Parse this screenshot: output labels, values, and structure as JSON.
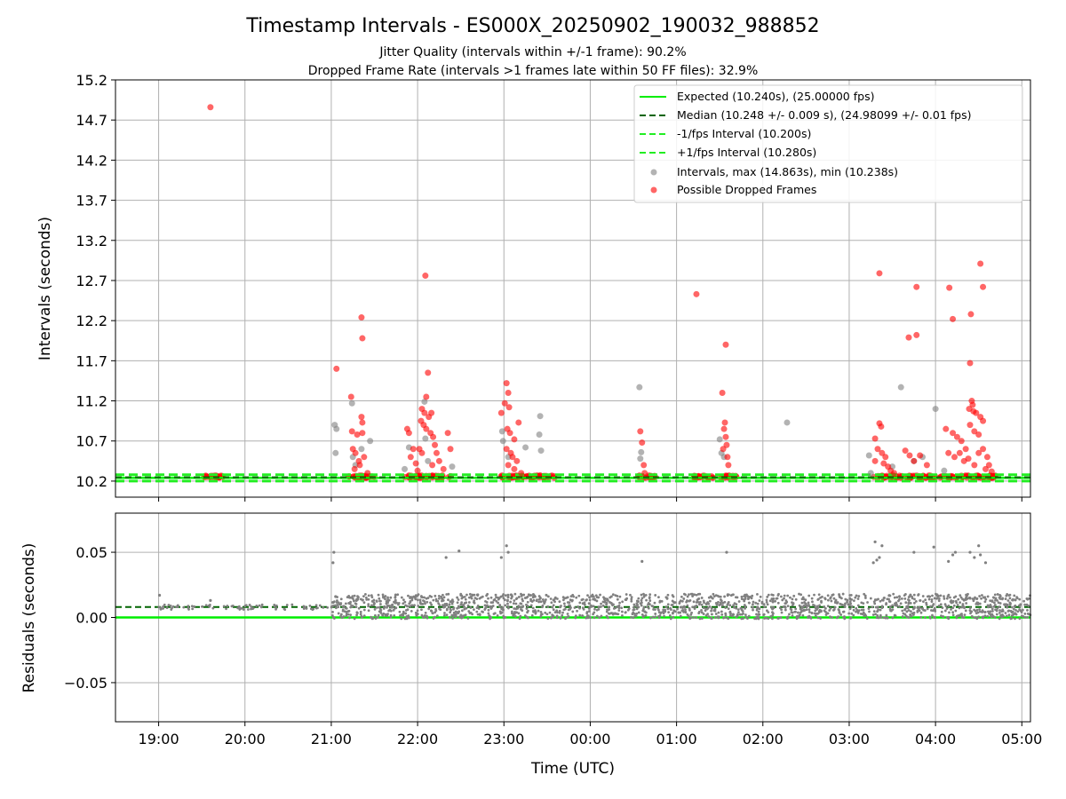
{
  "title": "Timestamp Intervals - ES000X_20250902_190032_988852",
  "subtitle_1": "Jitter Quality (intervals within +/-1 frame): 90.2%",
  "subtitle_2": "Dropped Frame Rate (intervals >1 frames late within 50 FF files): 32.9%",
  "colors": {
    "expected": "#00ee00",
    "median": "#006400",
    "interval_bounds": "#22ee22",
    "intervals": "#808080",
    "dropped": "#ff0000",
    "grid": "#b0b0b0"
  },
  "chart_data": [
    {
      "type": "scatter",
      "id": "top",
      "ylabel": "Intervals (seconds)",
      "ylim": [
        10.0,
        15.2
      ],
      "yticks": [
        "10.2",
        "10.7",
        "11.2",
        "11.7",
        "12.2",
        "12.7",
        "13.2",
        "13.7",
        "14.2",
        "14.7",
        "15.2"
      ],
      "x_range_hours": [
        18.5,
        29.1
      ],
      "grid": true,
      "legend_position": "top-right",
      "legend": [
        "Expected (10.240s), (25.00000 fps)",
        "Median (10.248 +/- 0.009 s), (24.98099 +/- 0.01 fps)",
        "-1/fps Interval (10.200s)",
        "+1/fps Interval (10.280s)",
        "Intervals, max (14.863s), min (10.238s)",
        "Possible Dropped Frames"
      ],
      "lines": {
        "expected": 10.24,
        "median": 10.248,
        "minus_interval": 10.2,
        "plus_interval": 10.28
      },
      "gray_points": [
        [
          21.04,
          10.9
        ],
        [
          21.05,
          10.55
        ],
        [
          21.06,
          10.85
        ],
        [
          21.24,
          11.17
        ],
        [
          21.25,
          10.5
        ],
        [
          21.28,
          10.4
        ],
        [
          21.35,
          10.6
        ],
        [
          21.45,
          10.7
        ],
        [
          21.85,
          10.35
        ],
        [
          21.9,
          10.62
        ],
        [
          22.08,
          11.19
        ],
        [
          22.09,
          10.73
        ],
        [
          22.12,
          10.45
        ],
        [
          22.4,
          10.38
        ],
        [
          22.98,
          10.82
        ],
        [
          22.99,
          10.7
        ],
        [
          23.05,
          10.5
        ],
        [
          23.25,
          10.62
        ],
        [
          23.42,
          11.01
        ],
        [
          23.41,
          10.78
        ],
        [
          23.43,
          10.58
        ],
        [
          24.57,
          11.37
        ],
        [
          24.58,
          10.48
        ],
        [
          24.59,
          10.56
        ],
        [
          25.5,
          10.72
        ],
        [
          25.52,
          10.55
        ],
        [
          25.55,
          10.5
        ],
        [
          26.28,
          10.93
        ],
        [
          27.23,
          10.52
        ],
        [
          27.25,
          10.3
        ],
        [
          27.6,
          11.37
        ],
        [
          27.5,
          10.38
        ],
        [
          27.75,
          10.45
        ],
        [
          28.0,
          11.1
        ],
        [
          27.85,
          10.5
        ],
        [
          28.1,
          10.33
        ]
      ],
      "red_points": [
        [
          19.6,
          14.86
        ],
        [
          21.06,
          11.6
        ],
        [
          21.23,
          11.25
        ],
        [
          21.35,
          12.24
        ],
        [
          21.36,
          11.98
        ],
        [
          21.35,
          11.0
        ],
        [
          21.36,
          10.93
        ],
        [
          21.24,
          10.82
        ],
        [
          21.3,
          10.78
        ],
        [
          21.36,
          10.8
        ],
        [
          21.25,
          10.6
        ],
        [
          21.28,
          10.55
        ],
        [
          21.32,
          10.45
        ],
        [
          21.33,
          10.4
        ],
        [
          21.27,
          10.35
        ],
        [
          21.38,
          10.5
        ],
        [
          21.42,
          10.3
        ],
        [
          22.09,
          12.76
        ],
        [
          22.12,
          11.55
        ],
        [
          22.1,
          11.25
        ],
        [
          22.05,
          11.1
        ],
        [
          22.08,
          11.05
        ],
        [
          22.13,
          11.0
        ],
        [
          22.16,
          11.05
        ],
        [
          22.04,
          10.95
        ],
        [
          22.07,
          10.9
        ],
        [
          22.1,
          10.85
        ],
        [
          22.15,
          10.8
        ],
        [
          22.18,
          10.75
        ],
        [
          21.88,
          10.85
        ],
        [
          21.9,
          10.8
        ],
        [
          21.95,
          10.6
        ],
        [
          22.02,
          10.6
        ],
        [
          22.05,
          10.55
        ],
        [
          22.2,
          10.65
        ],
        [
          22.22,
          10.55
        ],
        [
          22.25,
          10.45
        ],
        [
          22.3,
          10.35
        ],
        [
          22.35,
          10.8
        ],
        [
          22.38,
          10.6
        ],
        [
          21.92,
          10.5
        ],
        [
          21.98,
          10.42
        ],
        [
          22.0,
          10.33
        ],
        [
          22.17,
          10.4
        ],
        [
          23.03,
          11.42
        ],
        [
          23.05,
          11.3
        ],
        [
          23.01,
          11.17
        ],
        [
          23.06,
          11.12
        ],
        [
          22.97,
          11.05
        ],
        [
          23.17,
          10.93
        ],
        [
          23.04,
          10.85
        ],
        [
          23.07,
          10.8
        ],
        [
          23.12,
          10.72
        ],
        [
          23.03,
          10.6
        ],
        [
          23.08,
          10.55
        ],
        [
          23.1,
          10.5
        ],
        [
          23.15,
          10.45
        ],
        [
          23.05,
          10.4
        ],
        [
          23.12,
          10.35
        ],
        [
          23.2,
          10.3
        ],
        [
          24.58,
          10.82
        ],
        [
          24.6,
          10.68
        ],
        [
          24.62,
          10.4
        ],
        [
          24.63,
          10.3
        ],
        [
          25.23,
          12.53
        ],
        [
          25.57,
          11.9
        ],
        [
          25.53,
          11.3
        ],
        [
          25.56,
          10.93
        ],
        [
          25.55,
          10.85
        ],
        [
          25.57,
          10.75
        ],
        [
          25.58,
          10.65
        ],
        [
          25.54,
          10.6
        ],
        [
          25.59,
          10.5
        ],
        [
          25.6,
          10.4
        ],
        [
          27.35,
          12.79
        ],
        [
          27.3,
          10.73
        ],
        [
          27.35,
          10.92
        ],
        [
          27.37,
          10.88
        ],
        [
          27.33,
          10.6
        ],
        [
          27.38,
          10.55
        ],
        [
          27.42,
          10.5
        ],
        [
          27.3,
          10.45
        ],
        [
          27.4,
          10.42
        ],
        [
          27.45,
          10.38
        ],
        [
          27.48,
          10.33
        ],
        [
          27.52,
          10.3
        ],
        [
          27.69,
          11.99
        ],
        [
          27.78,
          12.62
        ],
        [
          27.78,
          12.02
        ],
        [
          27.65,
          10.58
        ],
        [
          27.7,
          10.52
        ],
        [
          27.75,
          10.45
        ],
        [
          27.82,
          10.52
        ],
        [
          27.9,
          10.4
        ],
        [
          28.16,
          12.61
        ],
        [
          28.2,
          12.22
        ],
        [
          28.41,
          12.28
        ],
        [
          28.4,
          11.67
        ],
        [
          28.52,
          12.91
        ],
        [
          28.55,
          12.62
        ],
        [
          28.39,
          11.1
        ],
        [
          28.42,
          11.2
        ],
        [
          28.43,
          11.15
        ],
        [
          28.44,
          11.07
        ],
        [
          28.47,
          11.05
        ],
        [
          28.52,
          11.0
        ],
        [
          28.55,
          10.95
        ],
        [
          28.4,
          10.9
        ],
        [
          28.45,
          10.82
        ],
        [
          28.5,
          10.78
        ],
        [
          28.12,
          10.85
        ],
        [
          28.2,
          10.8
        ],
        [
          28.25,
          10.75
        ],
        [
          28.3,
          10.7
        ],
        [
          28.35,
          10.6
        ],
        [
          28.15,
          10.55
        ],
        [
          28.22,
          10.5
        ],
        [
          28.28,
          10.55
        ],
        [
          28.33,
          10.45
        ],
        [
          28.38,
          10.48
        ],
        [
          28.45,
          10.4
        ],
        [
          28.5,
          10.55
        ],
        [
          28.55,
          10.6
        ],
        [
          28.6,
          10.5
        ],
        [
          28.62,
          10.4
        ],
        [
          28.58,
          10.35
        ],
        [
          28.65,
          10.32
        ]
      ],
      "red_clusters": [
        [
          19.5,
          19.75
        ],
        [
          21.2,
          21.5
        ],
        [
          21.85,
          22.4
        ],
        [
          22.95,
          23.6
        ],
        [
          24.55,
          24.75
        ],
        [
          25.2,
          25.45
        ],
        [
          25.5,
          25.7
        ],
        [
          27.28,
          28.0
        ],
        [
          28.0,
          28.7
        ]
      ]
    },
    {
      "type": "scatter",
      "id": "bottom",
      "ylabel": "Residuals (seconds)",
      "ylim": [
        -0.08,
        0.08
      ],
      "yticks": [
        "−0.05",
        "0.00",
        "0.05"
      ],
      "ytick_values": [
        -0.05,
        0.0,
        0.05
      ],
      "xlabel": "Time (UTC)",
      "xticks": [
        "19:00",
        "20:00",
        "21:00",
        "22:00",
        "23:00",
        "00:00",
        "01:00",
        "02:00",
        "03:00",
        "04:00",
        "05:00"
      ],
      "xtick_values": [
        19,
        20,
        21,
        22,
        23,
        24,
        25,
        26,
        27,
        28,
        29
      ],
      "x_range_hours": [
        18.5,
        29.1
      ],
      "grid": true,
      "lines": {
        "expected": 0.0,
        "median": 0.008
      },
      "outliers": [
        [
          19.01,
          0.017
        ],
        [
          19.6,
          0.013
        ],
        [
          21.02,
          0.042
        ],
        [
          21.03,
          0.05
        ],
        [
          21.05,
          0.016
        ],
        [
          22.33,
          0.046
        ],
        [
          22.48,
          0.051
        ],
        [
          22.97,
          0.046
        ],
        [
          23.03,
          0.055
        ],
        [
          23.05,
          0.05
        ],
        [
          24.6,
          0.043
        ],
        [
          25.58,
          0.05
        ],
        [
          27.28,
          0.042
        ],
        [
          27.3,
          0.058
        ],
        [
          27.32,
          0.044
        ],
        [
          27.35,
          0.046
        ],
        [
          27.38,
          0.055
        ],
        [
          27.75,
          0.05
        ],
        [
          27.98,
          0.054
        ],
        [
          28.15,
          0.043
        ],
        [
          28.2,
          0.048
        ],
        [
          28.23,
          0.05
        ],
        [
          28.4,
          0.05
        ],
        [
          28.45,
          0.046
        ],
        [
          28.5,
          0.055
        ],
        [
          28.52,
          0.048
        ],
        [
          28.58,
          0.042
        ]
      ]
    }
  ]
}
